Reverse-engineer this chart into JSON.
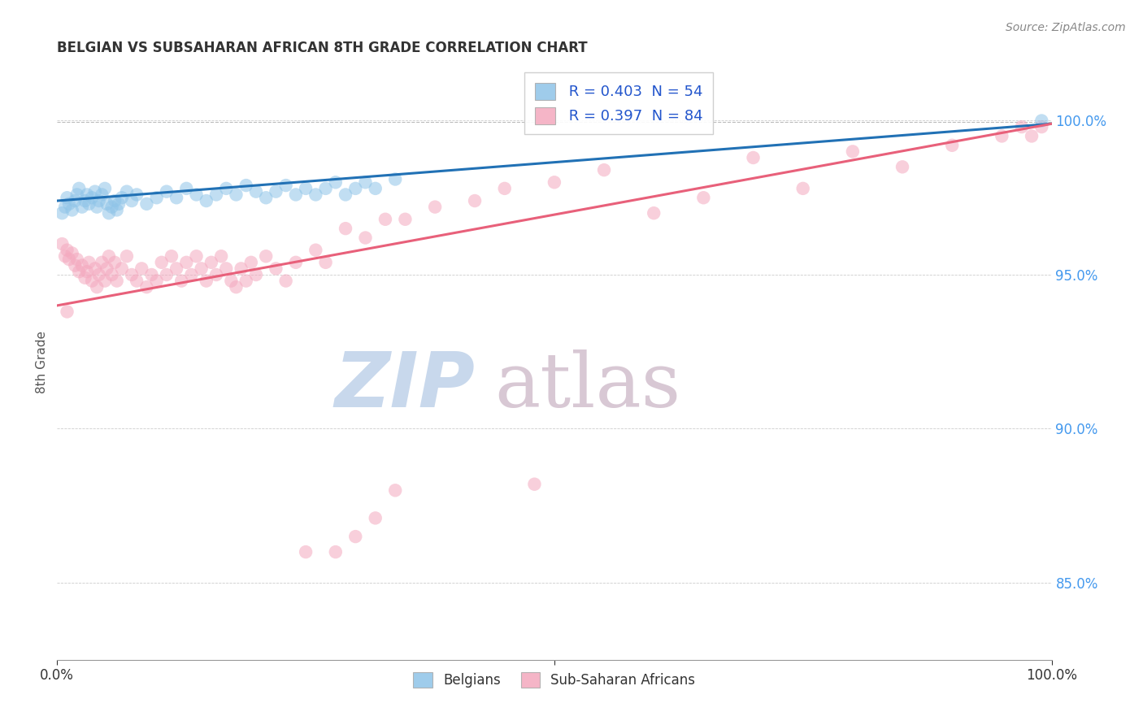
{
  "title": "BELGIAN VS SUBSAHARAN AFRICAN 8TH GRADE CORRELATION CHART",
  "source_text": "Source: ZipAtlas.com",
  "ylabel": "8th Grade",
  "ytick_labels": [
    "85.0%",
    "90.0%",
    "95.0%",
    "100.0%"
  ],
  "ytick_values": [
    0.85,
    0.9,
    0.95,
    1.0
  ],
  "xlim": [
    0.0,
    1.0
  ],
  "ylim": [
    0.825,
    1.018
  ],
  "legend_entries": [
    {
      "label": "Belgians",
      "color": "#8ec4e8",
      "r": 0.403,
      "n": 54
    },
    {
      "label": "Sub-Saharan Africans",
      "color": "#f4a8be",
      "r": 0.397,
      "n": 84
    }
  ],
  "trend_belgian_color": "#2171b5",
  "trend_african_color": "#e8607a",
  "watermark_zip": "ZIP",
  "watermark_atlas": "atlas",
  "watermark_color_zip": "#c8d8ec",
  "watermark_color_atlas": "#d8c8d4",
  "belgian_x": [
    0.005,
    0.008,
    0.01,
    0.012,
    0.015,
    0.018,
    0.02,
    0.022,
    0.025,
    0.028,
    0.03,
    0.032,
    0.035,
    0.038,
    0.04,
    0.042,
    0.045,
    0.048,
    0.05,
    0.052,
    0.055,
    0.058,
    0.06,
    0.062,
    0.065,
    0.07,
    0.075,
    0.08,
    0.09,
    0.1,
    0.11,
    0.12,
    0.13,
    0.14,
    0.15,
    0.16,
    0.17,
    0.18,
    0.19,
    0.2,
    0.21,
    0.22,
    0.23,
    0.24,
    0.25,
    0.26,
    0.27,
    0.28,
    0.29,
    0.3,
    0.31,
    0.32,
    0.34,
    0.99
  ],
  "belgian_y": [
    0.97,
    0.972,
    0.975,
    0.973,
    0.971,
    0.974,
    0.976,
    0.978,
    0.972,
    0.974,
    0.976,
    0.973,
    0.975,
    0.977,
    0.972,
    0.974,
    0.976,
    0.978,
    0.973,
    0.97,
    0.972,
    0.974,
    0.971,
    0.973,
    0.975,
    0.977,
    0.974,
    0.976,
    0.973,
    0.975,
    0.977,
    0.975,
    0.978,
    0.976,
    0.974,
    0.976,
    0.978,
    0.976,
    0.979,
    0.977,
    0.975,
    0.977,
    0.979,
    0.976,
    0.978,
    0.976,
    0.978,
    0.98,
    0.976,
    0.978,
    0.98,
    0.978,
    0.981,
    1.0
  ],
  "african_x": [
    0.005,
    0.008,
    0.01,
    0.012,
    0.015,
    0.018,
    0.02,
    0.022,
    0.025,
    0.028,
    0.03,
    0.032,
    0.035,
    0.038,
    0.04,
    0.042,
    0.045,
    0.048,
    0.05,
    0.052,
    0.055,
    0.058,
    0.06,
    0.065,
    0.07,
    0.075,
    0.08,
    0.085,
    0.09,
    0.095,
    0.1,
    0.105,
    0.11,
    0.115,
    0.12,
    0.125,
    0.13,
    0.135,
    0.14,
    0.145,
    0.15,
    0.155,
    0.16,
    0.165,
    0.17,
    0.175,
    0.18,
    0.185,
    0.19,
    0.195,
    0.2,
    0.21,
    0.22,
    0.23,
    0.24,
    0.25,
    0.26,
    0.27,
    0.28,
    0.29,
    0.3,
    0.31,
    0.32,
    0.33,
    0.34,
    0.35,
    0.38,
    0.42,
    0.45,
    0.48,
    0.5,
    0.55,
    0.6,
    0.65,
    0.7,
    0.75,
    0.8,
    0.85,
    0.9,
    0.95,
    0.97,
    0.98,
    0.99,
    0.01
  ],
  "african_y": [
    0.96,
    0.956,
    0.958,
    0.955,
    0.957,
    0.953,
    0.955,
    0.951,
    0.953,
    0.949,
    0.951,
    0.954,
    0.948,
    0.952,
    0.946,
    0.95,
    0.954,
    0.948,
    0.952,
    0.956,
    0.95,
    0.954,
    0.948,
    0.952,
    0.956,
    0.95,
    0.948,
    0.952,
    0.946,
    0.95,
    0.948,
    0.954,
    0.95,
    0.956,
    0.952,
    0.948,
    0.954,
    0.95,
    0.956,
    0.952,
    0.948,
    0.954,
    0.95,
    0.956,
    0.952,
    0.948,
    0.946,
    0.952,
    0.948,
    0.954,
    0.95,
    0.956,
    0.952,
    0.948,
    0.954,
    0.86,
    0.958,
    0.954,
    0.86,
    0.965,
    0.865,
    0.962,
    0.871,
    0.968,
    0.88,
    0.968,
    0.972,
    0.974,
    0.978,
    0.882,
    0.98,
    0.984,
    0.97,
    0.975,
    0.988,
    0.978,
    0.99,
    0.985,
    0.992,
    0.995,
    0.998,
    0.995,
    0.998,
    0.938
  ]
}
